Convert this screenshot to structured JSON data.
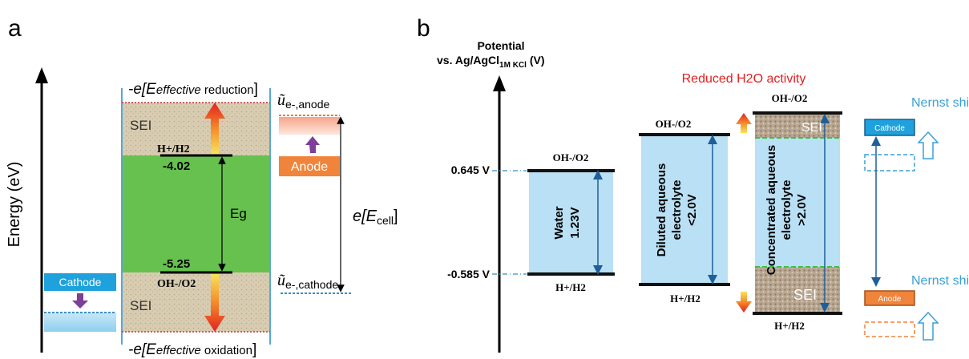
{
  "panel_a": {
    "label": "a",
    "energy_axis_label": "Energy (eV)",
    "top_label": {
      "prefix": "-e[E",
      "sub_italic": "effective",
      "sub_rest": " reduction",
      "suffix": "]"
    },
    "bottom_label": {
      "prefix": "-e[E",
      "sub_italic": "effective",
      "sub_rest": " oxidation",
      "suffix": "]"
    },
    "sei_top": "SEI",
    "sei_bottom": "SEI",
    "h_couple": "H+/H2",
    "h_value": "-4.02",
    "oh_couple": "OH-/O2",
    "oh_value": "-5.25",
    "gap_label": "Eg",
    "cathode": "Cathode",
    "anode": "Anode",
    "anode_potential": {
      "main": "ũ",
      "sub": "e-,anode"
    },
    "cathode_potential": {
      "main": "ũ",
      "sub": "e-,cathode"
    },
    "cell_label": {
      "prefix": "e[E",
      "sub": "cell",
      "suffix": "]"
    }
  },
  "panel_b": {
    "label": "b",
    "axis_title_line1": "Potential",
    "axis_title_line2": "vs. Ag/AgCl",
    "axis_title_sub": "1M KCl",
    "axis_title_unit": " (V)",
    "tick_high": "0.645 V",
    "tick_low": "-0.585 V",
    "reduced_activity": "Reduced H2O activity",
    "water": {
      "top": "OH-/O2",
      "bottom": "H+/H2",
      "line1": "Water",
      "line2": "1.23V"
    },
    "diluted": {
      "top": "OH-/O2",
      "bottom": "H+/H2",
      "line1": "Diluted aqueous",
      "line2": "electrolyte",
      "line3": "<2.0V"
    },
    "concentrated": {
      "top": "OH-/O2",
      "bottom": "H+/H2",
      "line1": "Concentrated aqueous",
      "line2": "electrolyte",
      "line3": ">2.0V",
      "sei_top": "SEI",
      "sei_bottom": "SEI"
    },
    "nernst_top": "Nernst shift",
    "nernst_bottom": "Nernst shift",
    "cathode": "Cathode",
    "anode": "Anode"
  },
  "colors": {
    "green_gap": "#66c14f",
    "sei": "#d9cdb4",
    "light_blue": "#b9e0f4",
    "cathode_blue": "#1ea1dc",
    "anode_orange": "#f0843a",
    "nernst_text": "#3aa0d6",
    "reduced_red": "#e02020",
    "purple": "#7d3f98",
    "dark_blue_arrow": "#1f5f99"
  }
}
